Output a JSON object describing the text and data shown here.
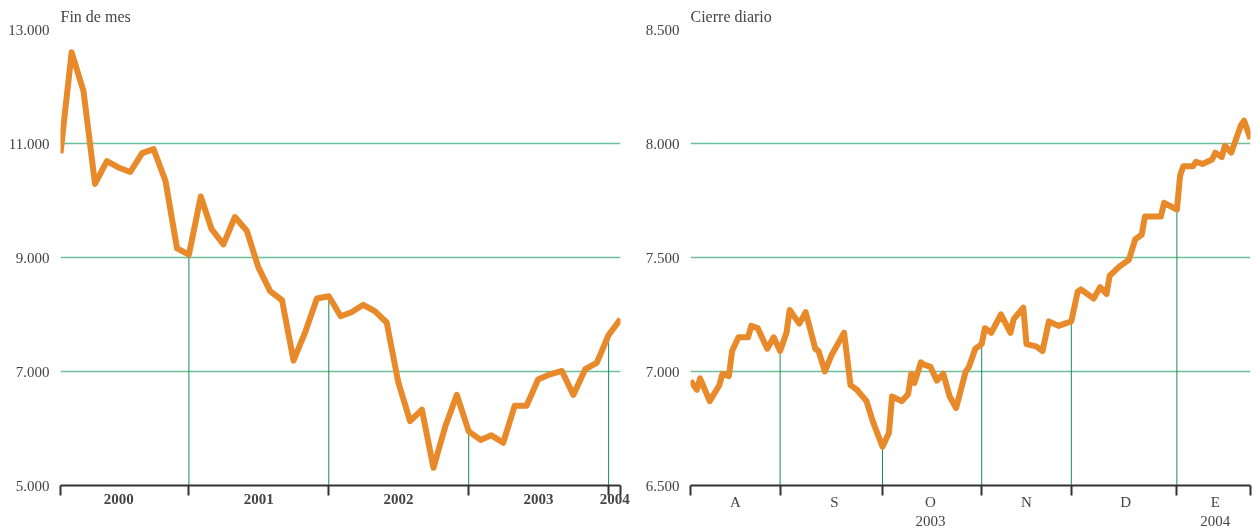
{
  "chart_data": [
    {
      "type": "line",
      "title": "Fin de mes",
      "grid": "y",
      "line_style": "solid",
      "marker": "none",
      "x": [
        "2000-01-31",
        "2000-02-29",
        "2000-03-31",
        "2000-04-30",
        "2000-05-31",
        "2000-06-30",
        "2000-07-31",
        "2000-08-31",
        "2000-09-30",
        "2000-10-31",
        "2000-11-30",
        "2000-12-31",
        "2001-01-31",
        "2001-02-28",
        "2001-03-31",
        "2001-04-30",
        "2001-05-31",
        "2001-06-30",
        "2001-07-31",
        "2001-08-31",
        "2001-09-30",
        "2001-10-31",
        "2001-11-30",
        "2001-12-31",
        "2002-01-31",
        "2002-02-28",
        "2002-03-31",
        "2002-04-30",
        "2002-05-31",
        "2002-06-30",
        "2002-07-31",
        "2002-08-31",
        "2002-09-30",
        "2002-10-31",
        "2002-11-30",
        "2002-12-31",
        "2003-01-31",
        "2003-02-28",
        "2003-03-31",
        "2003-04-30",
        "2003-05-31",
        "2003-06-30",
        "2003-07-31",
        "2003-08-31",
        "2003-09-30",
        "2003-10-31",
        "2003-11-30",
        "2003-12-31",
        "2004-01-31"
      ],
      "series": [
        {
          "color": "#e8892a",
          "values": [
            10830,
            12600,
            11920,
            10290,
            10690,
            10580,
            10500,
            10830,
            10900,
            10340,
            9160,
            9050,
            10070,
            9500,
            9230,
            9710,
            9470,
            8830,
            8410,
            8250,
            7190,
            7700,
            8280,
            8320,
            7970,
            8040,
            8170,
            8060,
            7860,
            6820,
            6130,
            6330,
            5310,
            6040,
            6590,
            5950,
            5800,
            5880,
            5750,
            6400,
            6400,
            6860,
            6950,
            7010,
            6590,
            7040,
            7150,
            7640,
            7920
          ]
        }
      ],
      "ref_lines": [
        {
          "axis": "x",
          "value": "2000-12-31",
          "color": "#1a8a5a"
        },
        {
          "axis": "x",
          "value": "2001-12-31",
          "color": "#1a8a5a"
        },
        {
          "axis": "x",
          "value": "2002-12-31",
          "color": "#1a8a5a"
        },
        {
          "axis": "x",
          "value": "2003-12-31",
          "color": "#1a8a5a"
        }
      ],
      "xlim": [
        "2000-01-31",
        "2004-01-31"
      ],
      "xticks": [
        {
          "value": "2000-01-31",
          "label": null
        },
        {
          "value": "2000-07-01",
          "label": "2000"
        },
        {
          "value": "2000-12-31",
          "label": null
        },
        {
          "value": "2001-07-01",
          "label": "2001"
        },
        {
          "value": "2001-12-31",
          "label": null
        },
        {
          "value": "2002-07-01",
          "label": "2002"
        },
        {
          "value": "2002-12-31",
          "label": null
        },
        {
          "value": "2003-07-01",
          "label": "2003"
        },
        {
          "value": "2003-12-31",
          "label": null
        },
        {
          "value": "2004-01-16",
          "label": "2004"
        },
        {
          "value": "2004-01-31",
          "label": null
        }
      ],
      "ylim": [
        5000,
        13000
      ],
      "yticks": [
        {
          "value": 5000,
          "label": "5.000"
        },
        {
          "value": 7000,
          "label": "7.000"
        },
        {
          "value": 9000,
          "label": "9.000"
        },
        {
          "value": 11000,
          "label": "11.000"
        },
        {
          "value": 13000,
          "label": "13.000"
        }
      ]
    },
    {
      "type": "line",
      "title": "Cierre diario",
      "grid": "y",
      "line_style": "solid",
      "marker": "none",
      "x": [
        "2003-08-01",
        "2003-08-03",
        "2003-08-04",
        "2003-08-07",
        "2003-08-10",
        "2003-08-11",
        "2003-08-13",
        "2003-08-14",
        "2003-08-16",
        "2003-08-19",
        "2003-08-20",
        "2003-08-22",
        "2003-08-25",
        "2003-08-27",
        "2003-08-29",
        "2003-08-31",
        "2003-09-01",
        "2003-09-04",
        "2003-09-06",
        "2003-09-09",
        "2003-09-10",
        "2003-09-12",
        "2003-09-14",
        "2003-09-16",
        "2003-09-18",
        "2003-09-20",
        "2003-09-22",
        "2003-09-25",
        "2003-09-27",
        "2003-09-30",
        "2003-10-02",
        "2003-10-03",
        "2003-10-06",
        "2003-10-08",
        "2003-10-09",
        "2003-10-10",
        "2003-10-12",
        "2003-10-13",
        "2003-10-15",
        "2003-10-17",
        "2003-10-19",
        "2003-10-21",
        "2003-10-23",
        "2003-10-26",
        "2003-10-27",
        "2003-10-29",
        "2003-10-31",
        "2003-11-01",
        "2003-11-03",
        "2003-11-06",
        "2003-11-09",
        "2003-11-10",
        "2003-11-13",
        "2003-11-14",
        "2003-11-17",
        "2003-11-19",
        "2003-11-21",
        "2003-11-24",
        "2003-11-28",
        "2003-11-30",
        "2003-12-01",
        "2003-12-05",
        "2003-12-07",
        "2003-12-09",
        "2003-12-10",
        "2003-12-13",
        "2003-12-16",
        "2003-12-18",
        "2003-12-20",
        "2003-12-21",
        "2003-12-26",
        "2003-12-27",
        "2003-12-31",
        "2004-01-01",
        "2004-01-02",
        "2004-01-05",
        "2004-01-06",
        "2004-01-08",
        "2004-01-11",
        "2004-01-12",
        "2004-01-14",
        "2004-01-15",
        "2004-01-17",
        "2004-01-20",
        "2004-01-21",
        "2004-01-23"
      ],
      "series": [
        {
          "color": "#e8892a",
          "values": [
            6960,
            6920,
            6970,
            6870,
            6940,
            6990,
            6980,
            7090,
            7150,
            7150,
            7200,
            7190,
            7100,
            7150,
            7090,
            7170,
            7270,
            7210,
            7260,
            7100,
            7090,
            7000,
            7070,
            7120,
            7170,
            6940,
            6920,
            6870,
            6780,
            6670,
            6730,
            6890,
            6870,
            6900,
            6990,
            6950,
            7040,
            7030,
            7020,
            6960,
            6990,
            6890,
            6840,
            7000,
            7020,
            7100,
            7120,
            7190,
            7170,
            7250,
            7170,
            7230,
            7280,
            7120,
            7110,
            7090,
            7220,
            7200,
            7220,
            7350,
            7360,
            7320,
            7370,
            7340,
            7420,
            7460,
            7490,
            7580,
            7600,
            7680,
            7680,
            7740,
            7710,
            7860,
            7900,
            7900,
            7920,
            7910,
            7930,
            7960,
            7940,
            7990,
            7960,
            8080,
            8100,
            8020
          ]
        }
      ],
      "ref_lines": [
        {
          "axis": "x",
          "value": "2003-08-29",
          "color": "#1a8a5a"
        },
        {
          "axis": "x",
          "value": "2003-09-30",
          "color": "#1a8a5a"
        },
        {
          "axis": "x",
          "value": "2003-10-31",
          "color": "#1a8a5a"
        },
        {
          "axis": "x",
          "value": "2003-11-28",
          "color": "#1a8a5a"
        },
        {
          "axis": "x",
          "value": "2003-12-31",
          "color": "#1a8a5a"
        }
      ],
      "xlim": [
        "2003-08-01",
        "2004-01-23"
      ],
      "xticks": [
        {
          "value": "2003-08-01",
          "label": null
        },
        {
          "value": "2003-08-15",
          "label": "A"
        },
        {
          "value": "2003-08-29",
          "label": null
        },
        {
          "value": "2003-09-15",
          "label": "S"
        },
        {
          "value": "2003-09-30",
          "label": null
        },
        {
          "value": "2003-10-15",
          "label": "O\n2003"
        },
        {
          "value": "2003-10-31",
          "label": null
        },
        {
          "value": "2003-11-14",
          "label": "N"
        },
        {
          "value": "2003-11-28",
          "label": null
        },
        {
          "value": "2003-12-15",
          "label": "D"
        },
        {
          "value": "2003-12-31",
          "label": null
        },
        {
          "value": "2004-01-12",
          "label": "E\n2004"
        },
        {
          "value": "2004-01-23",
          "label": null
        }
      ],
      "ylim": [
        6500,
        8500
      ],
      "yticks": [
        {
          "value": 6500,
          "label": "6.500"
        },
        {
          "value": 7000,
          "label": "7.000"
        },
        {
          "value": 7500,
          "label": "7.500"
        },
        {
          "value": 8000,
          "label": "8.000"
        },
        {
          "value": 8500,
          "label": "8.500"
        }
      ]
    }
  ]
}
